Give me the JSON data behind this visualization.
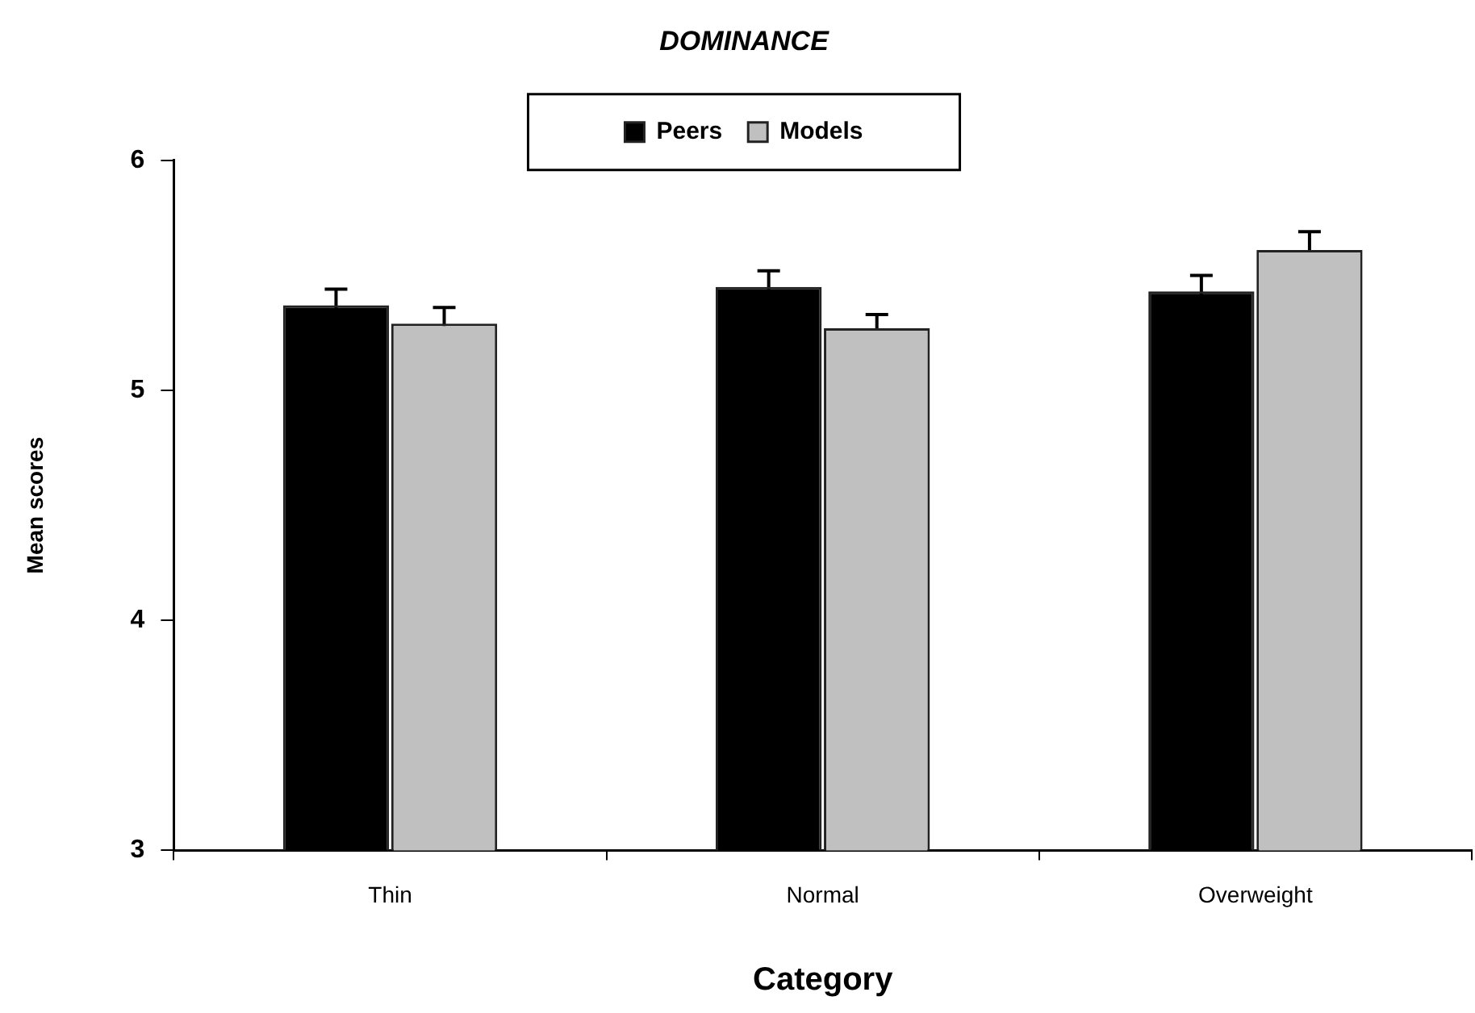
{
  "chart_data": {
    "type": "bar",
    "title": "DOMINANCE",
    "xlabel": "Category",
    "ylabel": "Mean scores",
    "categories": [
      "Thin",
      "Normal",
      "Overweight"
    ],
    "series": [
      {
        "name": "Peers",
        "color": "#000000",
        "values": [
          5.37,
          5.45,
          5.43
        ],
        "errors": [
          0.07,
          0.07,
          0.07
        ]
      },
      {
        "name": "Models",
        "color": "#c0c0c0",
        "values": [
          5.29,
          5.27,
          5.61
        ],
        "errors": [
          0.07,
          0.06,
          0.08
        ]
      }
    ],
    "ylim": [
      3,
      6
    ],
    "yticks": [
      3,
      4,
      5,
      6
    ],
    "grid": false,
    "legend": "top"
  }
}
